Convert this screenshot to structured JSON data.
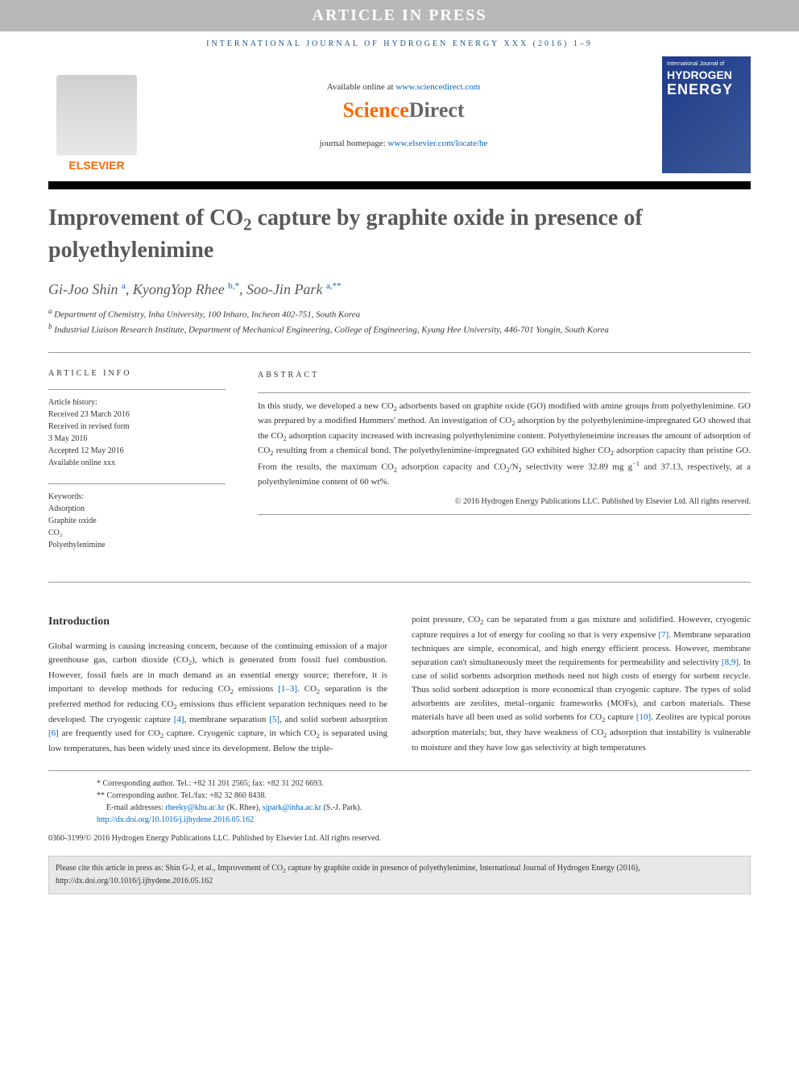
{
  "banner": "ARTICLE IN PRESS",
  "citation_header": "INTERNATIONAL JOURNAL OF HYDROGEN ENERGY XXX (2016) 1–9",
  "header": {
    "available_pre": "Available online at ",
    "available_link": "www.sciencedirect.com",
    "sd_sci": "Science",
    "sd_dir": "Direct",
    "homepage_pre": "journal homepage: ",
    "homepage_link": "www.elsevier.com/locate/he",
    "elsevier": "ELSEVIER",
    "cover_t1": "International Journal of",
    "cover_t2": "HYDROGEN",
    "cover_t3": "ENERGY"
  },
  "title_html": "Improvement of CO<sub class='sub'>2</sub> capture by graphite oxide in presence of polyethylenimine",
  "authors_html": "Gi-Joo Shin <span class='sup'>a</span>, KyongYop Rhee <span class='sup'>b,*</span>, Soo-Jin Park <span class='sup'>a,**</span>",
  "affiliations": {
    "a": "Department of Chemistry, Inha University, 100 Inharo, Incheon 402-751, South Korea",
    "b": "Industrial Liaison Research Institute, Department of Mechanical Engineering, College of Engineering, Kyung Hee University, 446-701 Yongin, South Korea"
  },
  "article_info": {
    "header": "ARTICLE INFO",
    "history_label": "Article history:",
    "received": "Received 23 March 2016",
    "revised1": "Received in revised form",
    "revised2": "3 May 2016",
    "accepted": "Accepted 12 May 2016",
    "online": "Available online xxx",
    "keywords_label": "Keywords:",
    "keywords": [
      "Adsorption",
      "Graphite oxide",
      "CO₂",
      "Polyethylenimine"
    ]
  },
  "abstract": {
    "header": "ABSTRACT",
    "text_html": "In this study, we developed a new CO<sub class='sub'>2</sub> adsorbents based on graphite oxide (GO) modified with amine groups from polyethylenimine. GO was prepared by a modified Hummers' method. An investigation of CO<sub class='sub'>2</sub> adsorption by the polyethylenimine-impregnated GO showed that the CO<sub class='sub'>2</sub> adsorption capacity increased with increasing polyethylenimine content. Polyethyleneimine increases the amount of adsorption of CO<sub class='sub'>2</sub> resulting from a chemical bond. The polyethylenimine-impregnated GO exhibited higher CO<sub class='sub'>2</sub> adsorption capacity than pristine GO. From the results, the maximum CO<sub class='sub'>2</sub> adsorption capacity and CO<sub class='sub'>2</sub>/N<sub class='sub'>2</sub> selectivity were 32.89 mg g<span class='supn'>−1</span> and 37.13, respectively, at a polyethylenimine content of 60 wt%.",
    "copyright": "© 2016 Hydrogen Energy Publications LLC. Published by Elsevier Ltd. All rights reserved."
  },
  "body": {
    "intro_heading": "Introduction",
    "col1_html": "Global warming is causing increasing concern, because of the continuing emission of a major greenhouse gas, carbon dioxide (CO<sub class='sub'>2</sub>), which is generated from fossil fuel combustion. However, fossil fuels are in much demand as an essential energy source; therefore, it is important to develop methods for reducing CO<sub class='sub'>2</sub> emissions <a href='#'>[1–3]</a>. CO<sub class='sub'>2</sub> separation is the preferred method for reducing CO<sub class='sub'>2</sub> emissions thus efficient separation techniques need to be developed. The cryogenic capture <a href='#'>[4]</a>, membrane separation <a href='#'>[5]</a>, and solid sorbent adsorption <a href='#'>[6]</a> are frequently used for CO<sub class='sub'>2</sub> capture. Cryogenic capture, in which CO<sub class='sub'>2</sub> is separated using low temperatures, has been widely used since its development. Below the triple-",
    "col2_html": "point pressure, CO<sub class='sub'>2</sub> can be separated from a gas mixture and solidified. However, cryogenic capture requires a lot of energy for cooling so that is very expensive <a href='#'>[7]</a>. Membrane separation techniques are simple, economical, and high energy efficient process. However, membrane separation can't simultaneously meet the requirements for permeability and selectivity <a href='#'>[8,9]</a>. In case of solid sorbents adsorption methods need not high costs of energy for sorbent recycle. Thus solid sorbent adsorption is more economical than cryogenic capture. The types of solid adsorbents are zeolites, metal–organic frameworks (MOFs), and carbon materials. These materials have all been used as solid sorbents for CO<sub class='sub'>2</sub> capture <a href='#'>[10]</a>. Zeolites are typical porous adsorption materials; but, they have weakness of CO<sub class='sub'>2</sub> adsorption that instability is vulnerable to moisture and they have low gas selectivity at high temperatures"
  },
  "footnotes": {
    "corr1": "* Corresponding author. Tel.: +82 31 201 2565; fax: +82 31 202 6693.",
    "corr2": "** Corresponding author. Tel./fax: +82 32 860 8438.",
    "email_label": "E-mail addresses: ",
    "email1": "rheeky@khu.ac.kr",
    "email1_name": " (K. Rhee), ",
    "email2": "sjpark@inha.ac.kr",
    "email2_name": " (S.-J. Park).",
    "doi": "http://dx.doi.org/10.1016/j.ijhydene.2016.05.162",
    "issn_copy": "0360-3199/© 2016 Hydrogen Energy Publications LLC. Published by Elsevier Ltd. All rights reserved."
  },
  "citebox_html": "Please cite this article in press as: Shin G-J, et al., Improvement of CO<sub class='sub'>2</sub> capture by graphite oxide in presence of polyethylenimine, International Journal of Hydrogen Energy (2016), http://dx.doi.org/10.1016/j.ijhydene.2016.05.162"
}
